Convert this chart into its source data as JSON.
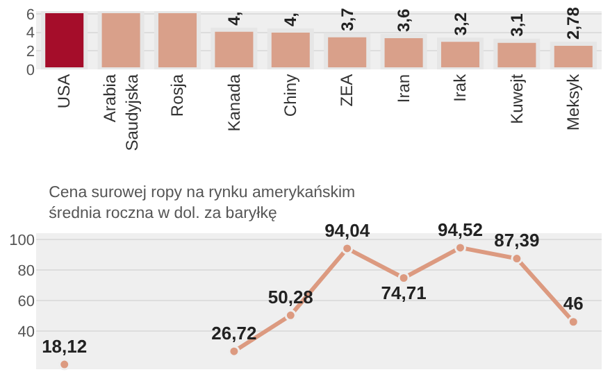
{
  "chart_data": [
    {
      "type": "bar",
      "categories": [
        "USA",
        "Arabia Saudyjska",
        "Rosja",
        "Kanada",
        "Chiny",
        "ZEA",
        "Iran",
        "Irak",
        "Kuwejt",
        "Meksyk"
      ],
      "values": [
        6.3,
        6.3,
        6.3,
        4.3,
        4.2,
        3.7,
        3.6,
        3.2,
        3.1,
        2.78
      ],
      "colors": [
        "#a50d2a",
        "#d9a08a",
        "#d9a08a",
        "#d9a08a",
        "#d9a08a",
        "#d9a08a",
        "#d9a08a",
        "#d9a08a",
        "#d9a08a",
        "#d9a08a"
      ],
      "value_labels": [
        null,
        null,
        null,
        "4,",
        "4,",
        "3,7",
        "3,6",
        "3,2",
        "3,1",
        "2,78"
      ],
      "ylim": [
        0,
        6.3
      ],
      "yticks": [
        0,
        2,
        4,
        6
      ],
      "grid": "y"
    },
    {
      "type": "line",
      "title": "Cena surowej ropy na rynku amerykańskim",
      "subtitle": "średnia roczna w dol. za baryłkę",
      "categories": [
        null,
        null,
        null,
        null,
        null,
        null,
        null,
        null,
        null,
        null
      ],
      "series": [
        {
          "color": "#dc9a80",
          "values": [
            18.12,
            null,
            null,
            26.72,
            50.28,
            94.04,
            74.71,
            94.52,
            87.39,
            46
          ]
        }
      ],
      "value_labels": [
        "18,12",
        null,
        null,
        "26,72",
        "50,28",
        "94,04",
        "74,71",
        "94,52",
        "87,39",
        "46"
      ],
      "ylim": [
        15,
        104
      ],
      "yticks": [
        40,
        60,
        80,
        100
      ],
      "grid": "y",
      "marker": "circle",
      "line_style": "solid"
    }
  ]
}
